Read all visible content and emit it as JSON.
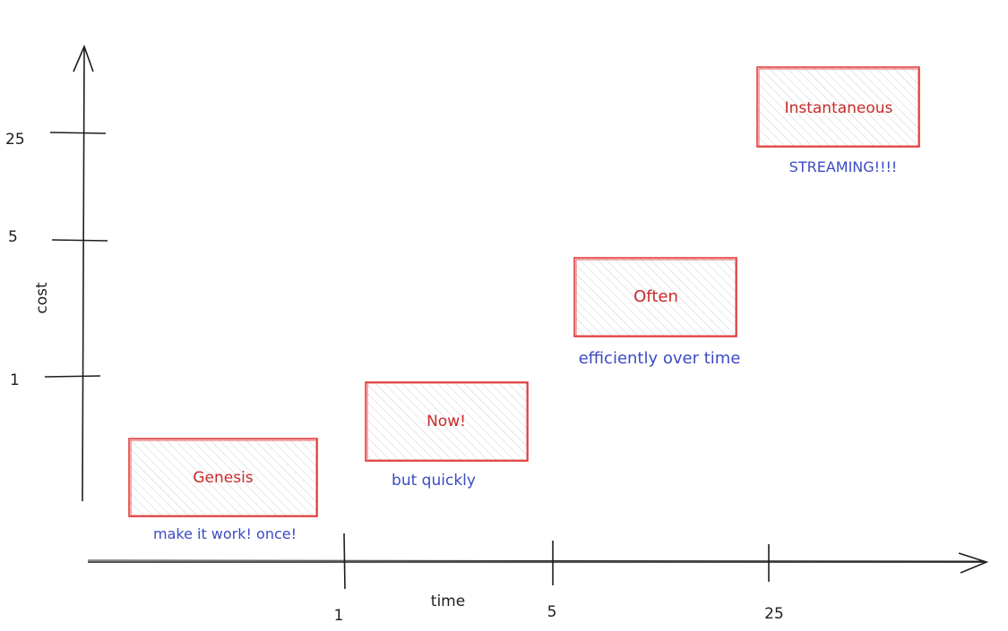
{
  "axes": {
    "y_label": "cost",
    "x_label": "time",
    "y_ticks": [
      "25",
      "5",
      "1"
    ],
    "x_ticks": [
      "1",
      "5",
      "25"
    ]
  },
  "stages": [
    {
      "title": "Genesis",
      "caption": "make it work! once!"
    },
    {
      "title": "Now!",
      "caption": "but quickly"
    },
    {
      "title": "Often",
      "caption": "efficiently over time"
    },
    {
      "title": "Instantaneous",
      "caption": "STREAMING!!!!"
    }
  ],
  "colors": {
    "box_stroke": "#e03131",
    "box_text": "#c92a2a",
    "caption_text": "#3b4bc4",
    "axis": "#1e1e1e",
    "hatch": "#c8c8c8"
  }
}
